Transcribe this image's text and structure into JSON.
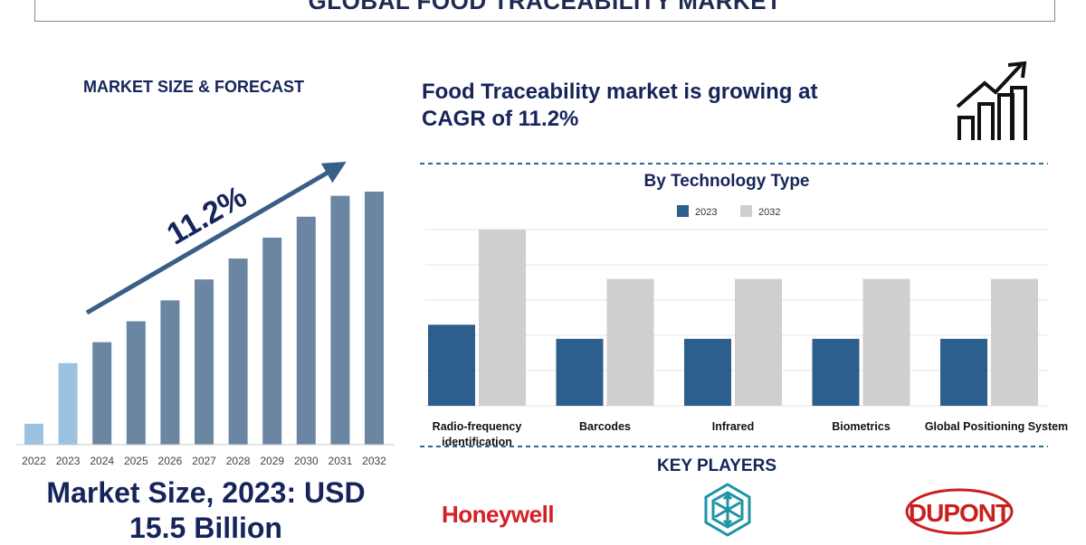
{
  "title": "GLOBAL FOOD TRACEABILITY MARKET",
  "left_panel": {
    "heading": "MARKET SIZE & FORECAST",
    "cagr_label": "11.2%",
    "market_size_line1": "Market Size, 2023: USD",
    "market_size_line2": "15.5 Billion"
  },
  "headline": {
    "line1": "Food Traceability market is growing at",
    "line2": "CAGR of 11.2%"
  },
  "icons": [
    "growth-chart-icon",
    "cube-logo-icon"
  ],
  "colors": {
    "navy": "#16245a",
    "bar_dark": "#6b86a3",
    "bar_light": "#9cc2e2",
    "series_2023": "#2c5e8e",
    "series_2032": "#cfcfcf",
    "honeywell_red": "#d42027",
    "dupont_red": "#c8201f",
    "teal": "#1d94a4"
  },
  "key_players": {
    "heading": "KEY PLAYERS",
    "honeywell": "Honeywell",
    "dupont": "DUPONT"
  },
  "chart_data": [
    {
      "type": "bar",
      "title": "",
      "categories": [
        "2022",
        "2023",
        "2024",
        "2025",
        "2026",
        "2027",
        "2028",
        "2029",
        "2030",
        "2031",
        "2032"
      ],
      "values": [
        1.0,
        3.9,
        4.9,
        5.9,
        6.9,
        7.9,
        8.9,
        9.9,
        10.9,
        11.9,
        12.1
      ],
      "highlight": [
        "2022",
        "2023"
      ],
      "ylim": [
        0,
        13
      ],
      "grid": false,
      "annotation": "11.2%"
    },
    {
      "type": "bar",
      "title": "By Technology Type",
      "categories": [
        "Radio-frequency identification",
        "Barcodes",
        "Infrared",
        "Biometrics",
        "Global Positioning System"
      ],
      "series": [
        {
          "name": "2023",
          "values": [
            2.3,
            1.9,
            1.9,
            1.9,
            1.9
          ]
        },
        {
          "name": "2032",
          "values": [
            5.0,
            3.6,
            3.6,
            3.6,
            3.6
          ]
        }
      ],
      "ylim": [
        0,
        5
      ],
      "grid": true,
      "legend": "top-center"
    }
  ]
}
